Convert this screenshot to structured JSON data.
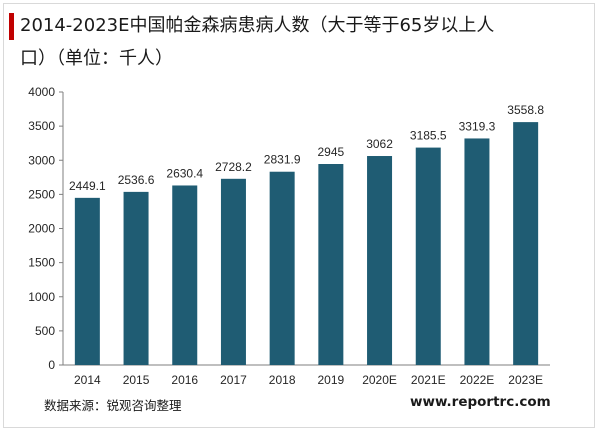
{
  "header": {
    "title_line1": "2014-2023E中国帕金森病患病人数（大于等于65岁以上人",
    "title_line2": "口）（单位：千人）",
    "accent_color": "#c00000"
  },
  "chart_data": {
    "type": "bar",
    "categories": [
      "2014",
      "2015",
      "2016",
      "2017",
      "2018",
      "2019",
      "2020E",
      "2021E",
      "2022E",
      "2023E"
    ],
    "values": [
      2449.1,
      2536.6,
      2630.4,
      2728.2,
      2831.9,
      2945,
      3062,
      3185.5,
      3319.3,
      3558.8
    ],
    "value_labels": [
      "2449.1",
      "2536.6",
      "2630.4",
      "2728.2",
      "2831.9",
      "2945",
      "3062",
      "3185.5",
      "3319.3",
      "3558.8"
    ],
    "ylim": [
      0,
      4000
    ],
    "yticks": [
      "0",
      "500",
      "1000",
      "1500",
      "2000",
      "2500",
      "3000",
      "3500",
      "4000"
    ],
    "bar_color": "#1f5c73",
    "grid": false,
    "legend": "none"
  },
  "footer": {
    "source": "数据来源：锐观咨询整理",
    "website": "www.reportrc.com"
  }
}
